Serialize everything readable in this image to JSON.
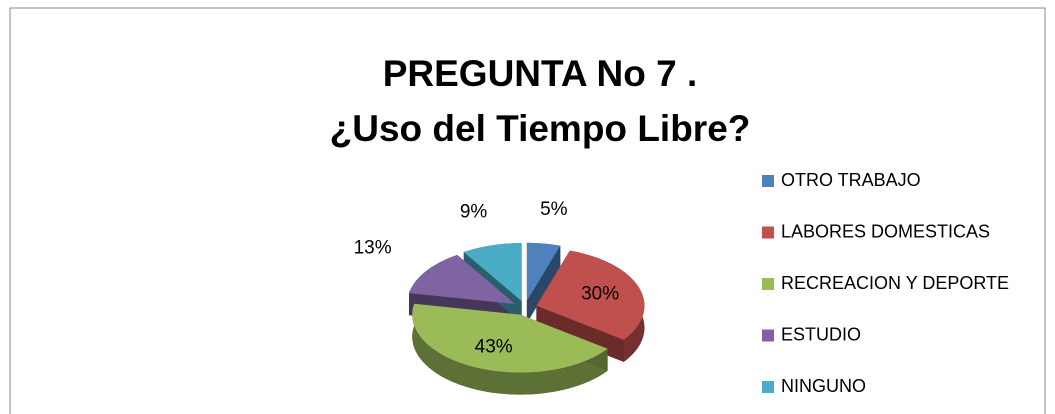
{
  "chart_data": {
    "type": "pie",
    "title": [
      "PREGUNTA No 7 .",
      "¿Uso del Tiempo Libre?"
    ],
    "categories": [
      "OTRO TRABAJO",
      "LABORES DOMESTICAS",
      "RECREACION Y DEPORTE",
      "ESTUDIO",
      "NINGUNO"
    ],
    "values": [
      5,
      30,
      43,
      13,
      9
    ],
    "value_labels": [
      "5%",
      "30%",
      "43%",
      "13%",
      "9%"
    ],
    "colors": [
      "#4f81bd",
      "#c0504d",
      "#9bbb59",
      "#8064a2",
      "#4bacc6"
    ],
    "legend": "right"
  }
}
